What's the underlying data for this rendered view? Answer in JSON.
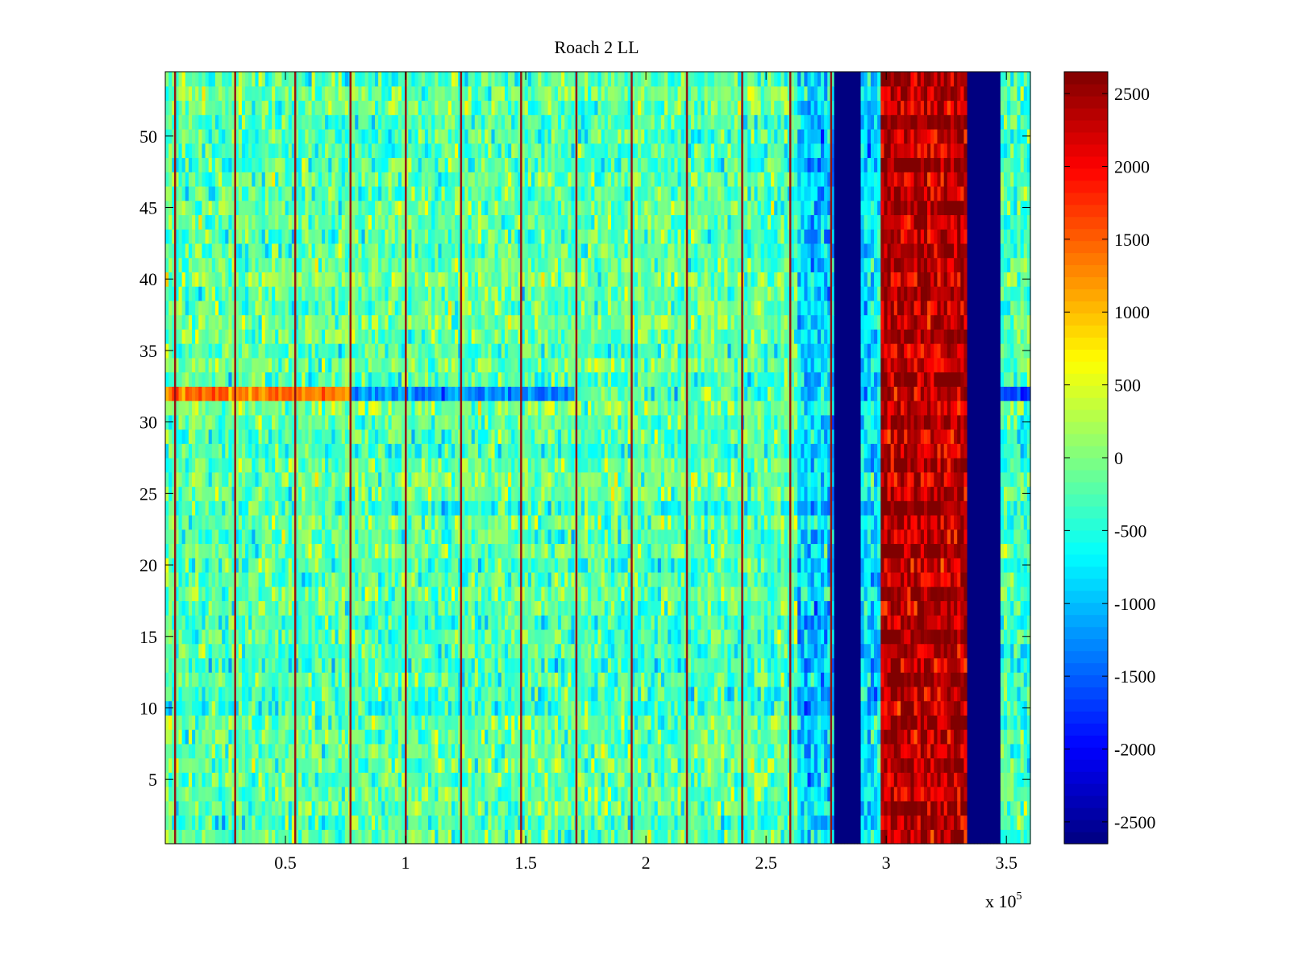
{
  "chart_data": {
    "type": "heatmap",
    "title": "Roach 2 LL",
    "xlabel": "",
    "ylabel": "",
    "x_exponent_label": "x 10",
    "x_exponent_power": "5",
    "xlim": [
      0.0,
      3.6
    ],
    "ylim": [
      0.5,
      54.5
    ],
    "xticks": [
      0.5,
      1,
      1.5,
      2,
      2.5,
      3,
      3.5
    ],
    "xtick_labels": [
      "0.5",
      "1",
      "1.5",
      "2",
      "2.5",
      "3",
      "3.5"
    ],
    "yticks": [
      5,
      10,
      15,
      20,
      25,
      30,
      35,
      40,
      45,
      50
    ],
    "ytick_labels": [
      "5",
      "10",
      "15",
      "20",
      "25",
      "30",
      "35",
      "40",
      "45",
      "50"
    ],
    "colorbar": {
      "colormap": "jet",
      "clim": [
        -2650,
        2650
      ],
      "ticks": [
        -2500,
        -2000,
        -1500,
        -1000,
        -500,
        0,
        500,
        1000,
        1500,
        2000,
        2500
      ],
      "tick_labels": [
        "-2500",
        "-2000",
        "-1500",
        "-1000",
        "-500",
        "0",
        "500",
        "1000",
        "1500",
        "2000",
        "2500"
      ]
    },
    "n_rows": 54,
    "column_bands": [
      {
        "x_start": 0.0,
        "x_end": 2.63,
        "description": "background mixed",
        "mean": -200
      },
      {
        "x_start": 2.63,
        "x_end": 2.78,
        "description": "cyan/blue band",
        "mean": -900
      },
      {
        "x_start": 2.78,
        "x_end": 2.89,
        "description": "saturated low",
        "mean": -2650
      },
      {
        "x_start": 2.89,
        "x_end": 2.97,
        "description": "cyan band",
        "mean": -800
      },
      {
        "x_start": 2.97,
        "x_end": 3.34,
        "description": "high red band",
        "mean": 2300
      },
      {
        "x_start": 3.34,
        "x_end": 3.47,
        "description": "saturated low",
        "mean": -2650
      },
      {
        "x_start": 3.47,
        "x_end": 3.6,
        "description": "background mixed",
        "mean": -300
      }
    ],
    "spike_lines_x": [
      0.04,
      0.29,
      0.54,
      0.77,
      1.0,
      1.23,
      1.48,
      1.71,
      1.94,
      2.17,
      2.4,
      2.6,
      2.77
    ],
    "anomalous_row": {
      "row": 32,
      "segments": [
        {
          "x_start": 0.0,
          "x_end": 0.77,
          "mean": 1400
        },
        {
          "x_start": 0.77,
          "x_end": 1.71,
          "mean": -1300
        },
        {
          "x_start": 3.47,
          "x_end": 3.6,
          "mean": -1600
        }
      ]
    }
  }
}
